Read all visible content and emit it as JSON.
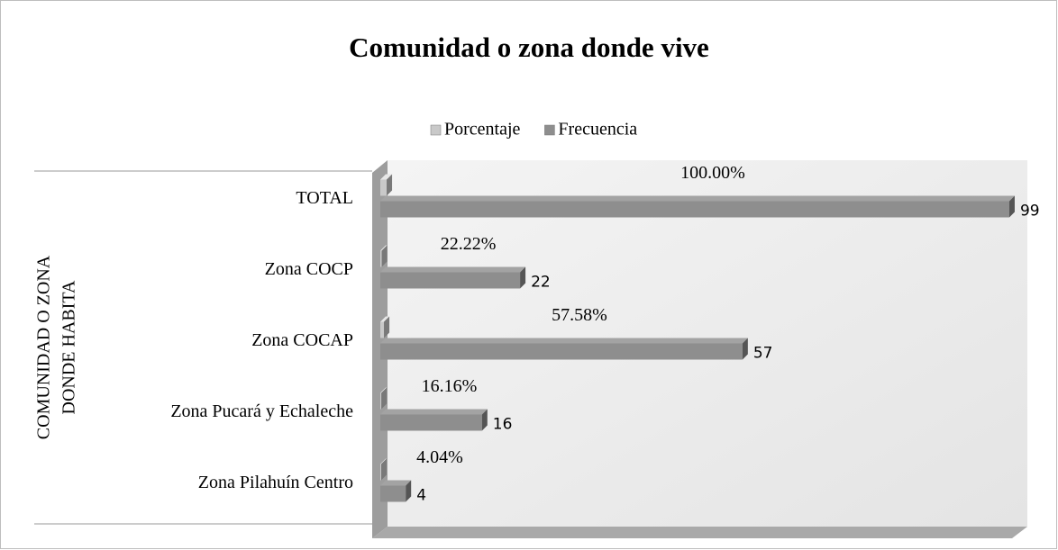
{
  "chart_data": {
    "type": "bar3d-horizontal",
    "title": "Comunidad o zona donde vive",
    "ylabel_lines": [
      "COMUNIDAD O ZONA",
      "DONDE HABITA"
    ],
    "categories": [
      "TOTAL",
      "Zona COCP",
      "Zona COCAP",
      "Zona Pucará y Echaleche",
      "Zona Pilahuín Centro"
    ],
    "xlim": [
      0,
      100
    ],
    "legend": "top",
    "series": [
      {
        "name": "Porcentaje",
        "color": "#c9c9c9",
        "values": [
          1.0,
          0.2222,
          0.5758,
          0.1616,
          0.0404
        ],
        "value_labels": [
          "100.00%",
          "22.22%",
          "57.58%",
          "16.16%",
          "4.04%"
        ]
      },
      {
        "name": "Frecuencia",
        "color": "#8e8e8e",
        "values": [
          99,
          22,
          57,
          16,
          4
        ]
      }
    ]
  }
}
